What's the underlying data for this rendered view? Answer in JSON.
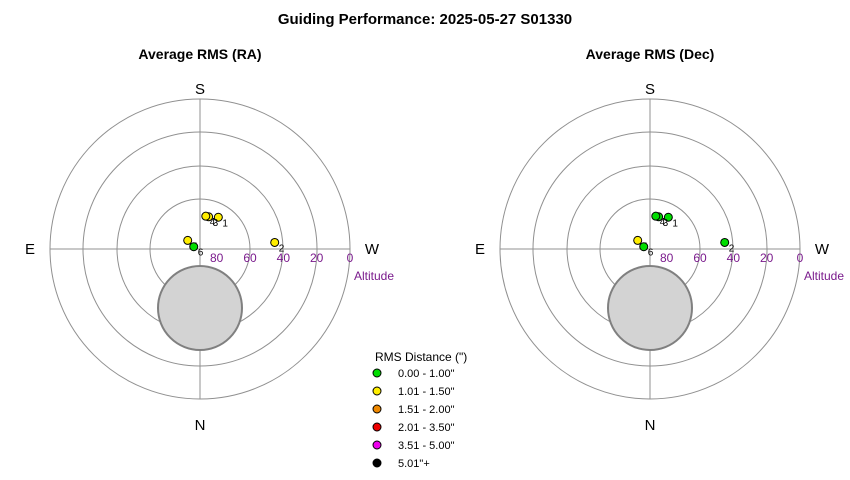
{
  "title": "Guiding Performance: 2025-05-27  S01330",
  "compass": {
    "south": "S",
    "north": "N",
    "east": "E",
    "west": "W"
  },
  "altitude_label": "Altitude",
  "colors": {
    "grid": "#909090",
    "zenith_disc": "#d3d3d3",
    "zenith_disc_stroke": "#808080",
    "altitude_text": "#7a1a8c"
  },
  "legend": {
    "title": "RMS Distance (\")",
    "items": [
      {
        "label": "0.00 - 1.00\"",
        "color": "#00dd00"
      },
      {
        "label": "1.01 - 1.50\"",
        "color": "#ffee00"
      },
      {
        "label": "1.51 - 2.00\"",
        "color": "#ee8800"
      },
      {
        "label": "2.01 - 3.50\"",
        "color": "#ee0000"
      },
      {
        "label": "3.51 - 5.00\"",
        "color": "#ee00ee"
      },
      {
        "label": "5.01\"+",
        "color": "#000000"
      }
    ]
  },
  "chart_data": [
    {
      "type": "scatter",
      "projection": "polar-altaz",
      "title": "Average RMS (RA)",
      "radial_axis": {
        "label": "Altitude",
        "ticks": [
          80,
          60,
          40,
          20,
          0
        ],
        "range": [
          90,
          0
        ]
      },
      "points": [
        {
          "label": "1",
          "azimuth": 210,
          "altitude": 68,
          "color": "#ffee00"
        },
        {
          "label": "2",
          "azimuth": 265,
          "altitude": 45,
          "color": "#ffee00"
        },
        {
          "label": "3",
          "azimuth": 195,
          "altitude": 70,
          "color": "#ffee00"
        },
        {
          "label": "4",
          "azimuth": 190,
          "altitude": 70,
          "color": "#ffee00"
        },
        {
          "label": "5",
          "azimuth": 125,
          "altitude": 81,
          "color": "#ffee00"
        },
        {
          "label": "6",
          "azimuth": 110,
          "altitude": 86,
          "color": "#00dd00"
        }
      ]
    },
    {
      "type": "scatter",
      "projection": "polar-altaz",
      "title": "Average RMS (Dec)",
      "radial_axis": {
        "label": "Altitude",
        "ticks": [
          80,
          60,
          40,
          20,
          0
        ],
        "range": [
          90,
          0
        ]
      },
      "points": [
        {
          "label": "1",
          "azimuth": 210,
          "altitude": 68,
          "color": "#00dd00"
        },
        {
          "label": "2",
          "azimuth": 265,
          "altitude": 45,
          "color": "#00dd00"
        },
        {
          "label": "3",
          "azimuth": 195,
          "altitude": 70,
          "color": "#00dd00"
        },
        {
          "label": "4",
          "azimuth": 190,
          "altitude": 70,
          "color": "#00dd00"
        },
        {
          "label": "5",
          "azimuth": 125,
          "altitude": 81,
          "color": "#ffee00"
        },
        {
          "label": "6",
          "azimuth": 110,
          "altitude": 86,
          "color": "#00dd00"
        }
      ]
    }
  ]
}
